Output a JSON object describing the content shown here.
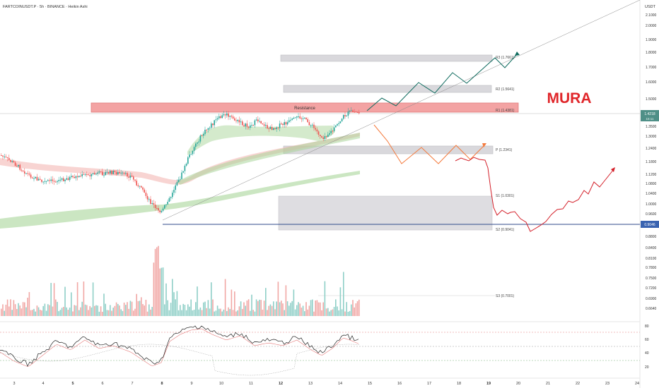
{
  "header": {
    "symbol_line": "FARTCOINUSDT.P · 5h · BINANCE · Heikin Ashi",
    "currency": "USDT"
  },
  "watermark": "MURA",
  "colors": {
    "bull": "#26a69a",
    "bear": "#ef5350",
    "path_up": "#0e6b5e",
    "path_mid": "#f47a3c",
    "path_down": "#d4202a",
    "resistance_fill": "#f3a3a3",
    "zone_fill": "#d9d8dc",
    "support_line": "#2f4a8a",
    "price_badge": "#4f8f87",
    "support_badge": "#3a63b0",
    "watermark": "#e0262a"
  },
  "chart_data": {
    "type": "candlestick",
    "price_scale_labels": [
      "2.1000",
      "2.0000",
      "1.9000",
      "1.8000",
      "1.7000",
      "1.6000",
      "1.5000",
      "1.4000",
      "1.3500",
      "1.3000",
      "1.2400",
      "1.1800",
      "1.1200",
      "1.0800",
      "1.0400",
      "1.0000",
      "0.9600",
      "0.9200",
      "0.8800",
      "0.8400",
      "0.8100",
      "0.7800",
      "0.7500",
      "0.7200",
      "0.6900",
      "0.6640"
    ],
    "x_tick_labels": [
      "3",
      "4",
      "5",
      "6",
      "7",
      "8",
      "9",
      "10",
      "11",
      "12",
      "13",
      "14",
      "15",
      "16",
      "17",
      "18",
      "19",
      "20",
      "21",
      "22",
      "23",
      "24"
    ],
    "bold_x_ticks": [
      "5",
      "8",
      "12",
      "19"
    ],
    "current_price_badge": [
      "1.4218",
      "15:11"
    ],
    "support_price_badge": "0.9046",
    "resistance_label": "Resistance",
    "pivot_levels": [
      {
        "label": "R3 (1.7661)"
      },
      {
        "label": "R2 (1.5641)"
      },
      {
        "label": "R1 (1.4381)"
      },
      {
        "label": "P (1.2341)"
      },
      {
        "label": "S1 (1.0301)"
      },
      {
        "label": "S2 (0.9041)"
      },
      {
        "label": "S3 (0.7001)"
      }
    ],
    "rsi_scale_labels": [
      "80",
      "60",
      "40",
      "20"
    ]
  }
}
